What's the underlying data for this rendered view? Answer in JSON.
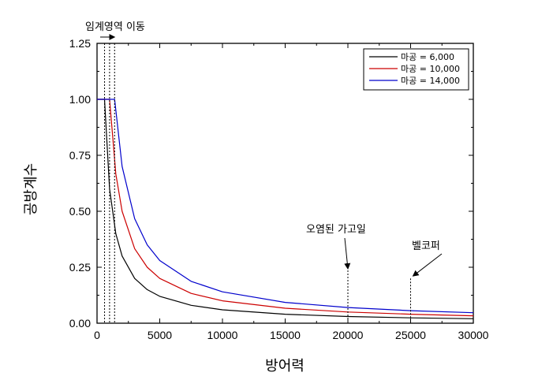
{
  "chart_data": {
    "type": "line",
    "title": "",
    "xlabel": "방어력",
    "ylabel": "공방계수",
    "xlim": [
      0,
      30000
    ],
    "ylim": [
      0,
      1.25
    ],
    "x_ticks": [
      0,
      5000,
      10000,
      15000,
      20000,
      25000,
      30000
    ],
    "x_tick_labels": [
      "0",
      "5000",
      "10000",
      "15000",
      "20000",
      "25000",
      "30000"
    ],
    "y_ticks": [
      0,
      0.25,
      0.5,
      0.75,
      1.0,
      1.25
    ],
    "y_tick_labels": [
      "0.00",
      "0.25",
      "0.50",
      "0.75",
      "1.00",
      "1.25"
    ],
    "grid": false,
    "legend_position": "top-right",
    "series": [
      {
        "name": "마공 = 6,000",
        "color": "#000000",
        "x": [
          0,
          600,
          1000,
          1500,
          2000,
          3000,
          4000,
          5000,
          7500,
          10000,
          15000,
          20000,
          25000,
          30000
        ],
        "values": [
          1.0,
          1.0,
          0.6,
          0.4,
          0.3,
          0.2,
          0.15,
          0.12,
          0.08,
          0.06,
          0.04,
          0.03,
          0.024,
          0.02
        ]
      },
      {
        "name": "마공 = 10,000",
        "color": "#cc0000",
        "x": [
          0,
          1000,
          1500,
          2000,
          3000,
          4000,
          5000,
          7500,
          10000,
          15000,
          20000,
          25000,
          30000
        ],
        "values": [
          1.0,
          1.0,
          0.667,
          0.5,
          0.333,
          0.25,
          0.2,
          0.133,
          0.1,
          0.067,
          0.05,
          0.04,
          0.033
        ]
      },
      {
        "name": "마공 = 14,000",
        "color": "#0000cc",
        "x": [
          0,
          1400,
          2000,
          3000,
          4000,
          5000,
          7500,
          10000,
          15000,
          20000,
          25000,
          30000
        ],
        "values": [
          1.0,
          1.0,
          0.7,
          0.467,
          0.35,
          0.28,
          0.187,
          0.14,
          0.093,
          0.07,
          0.056,
          0.047
        ]
      }
    ],
    "annotations": [
      {
        "text": "임계영역 이동",
        "x": 900,
        "y": 1.25,
        "vlines_x": [
          600,
          1000,
          1400
        ]
      },
      {
        "text": "오염된 가고일",
        "x": 20000,
        "y": 0.236,
        "vline_x": 20000
      },
      {
        "text": "벨코퍼",
        "x": 25000,
        "y": 0.2,
        "vline_x": 25000
      }
    ]
  }
}
